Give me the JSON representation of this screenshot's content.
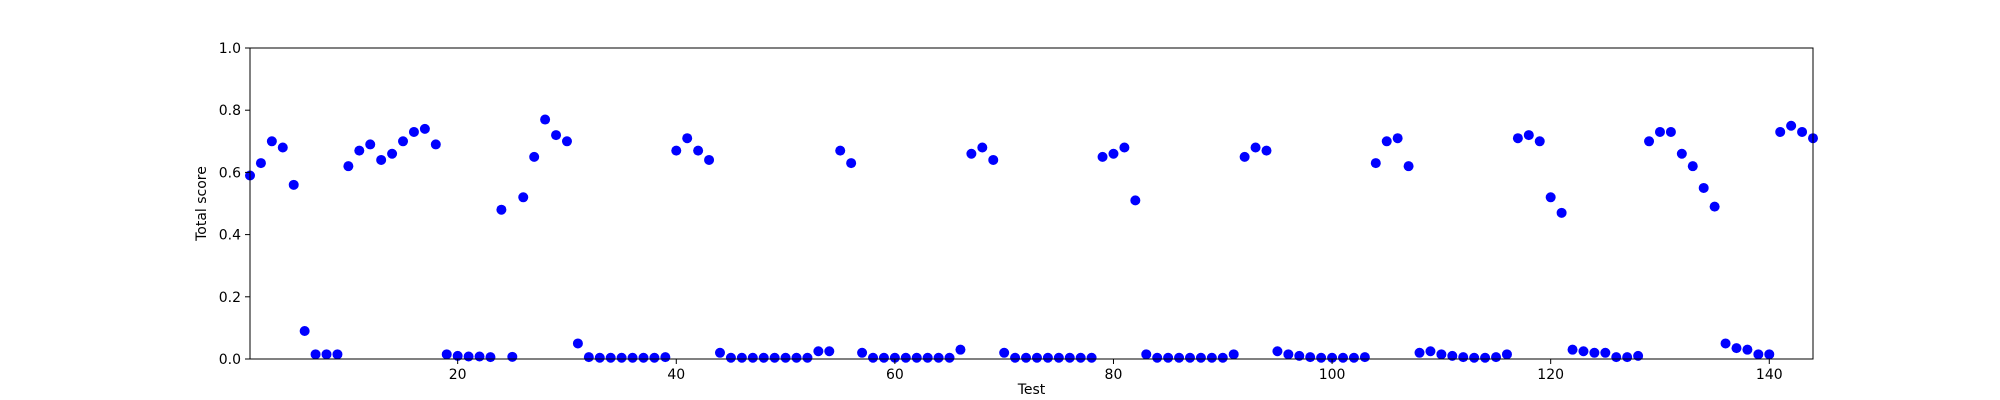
{
  "chart_data": {
    "type": "scatter",
    "xlabel": "Test",
    "ylabel": "Total score",
    "xlim": [
      1,
      144
    ],
    "ylim": [
      0.0,
      1.0
    ],
    "grid": false,
    "marker_color": "#0000ff",
    "x_ticks": [
      20,
      40,
      60,
      80,
      100,
      120,
      140
    ],
    "y_ticks": [
      0.0,
      0.2,
      0.4,
      0.6,
      0.8,
      1.0
    ],
    "x_tick_labels": [
      "20",
      "40",
      "60",
      "80",
      "100",
      "120",
      "140"
    ],
    "y_tick_labels": [
      "0.0",
      "0.2",
      "0.4",
      "0.6",
      "0.8",
      "1.0"
    ],
    "series": [
      {
        "x": [
          1,
          2,
          3,
          4,
          5,
          6,
          7,
          8,
          9,
          10,
          11,
          12,
          13,
          14,
          15,
          16,
          17,
          18,
          19,
          20,
          21,
          22,
          23,
          24,
          25,
          26,
          27,
          28,
          29,
          30,
          31,
          32,
          33,
          34,
          35,
          36,
          37,
          38,
          39,
          40,
          41,
          42,
          43,
          44,
          45,
          46,
          47,
          48,
          49,
          50,
          51,
          52,
          53,
          54,
          55,
          56,
          57,
          58,
          59,
          60,
          61,
          62,
          63,
          64,
          65,
          66,
          67,
          68,
          69,
          70,
          71,
          72,
          73,
          74,
          75,
          76,
          77,
          78,
          79,
          80,
          81,
          82,
          83,
          84,
          85,
          86,
          87,
          88,
          89,
          90,
          91,
          92,
          93,
          94,
          95,
          96,
          97,
          98,
          99,
          100,
          101,
          102,
          103,
          104,
          105,
          106,
          107,
          108,
          109,
          110,
          111,
          112,
          113,
          114,
          115,
          116,
          117,
          118,
          119,
          120,
          121,
          122,
          123,
          124,
          125,
          126,
          127,
          128,
          129,
          130,
          131,
          132,
          133,
          134,
          135,
          136,
          137,
          138,
          139,
          140,
          141,
          142,
          143,
          144
        ],
        "y": [
          0.59,
          0.63,
          0.7,
          0.68,
          0.56,
          0.09,
          0.015,
          0.015,
          0.015,
          0.62,
          0.67,
          0.69,
          0.64,
          0.66,
          0.7,
          0.73,
          0.74,
          0.69,
          0.015,
          0.01,
          0.008,
          0.008,
          0.006,
          0.48,
          0.007,
          0.52,
          0.65,
          0.77,
          0.72,
          0.7,
          0.05,
          0.006,
          0.004,
          0.004,
          0.004,
          0.004,
          0.004,
          0.004,
          0.006,
          0.67,
          0.71,
          0.67,
          0.64,
          0.02,
          0.004,
          0.004,
          0.004,
          0.004,
          0.004,
          0.004,
          0.004,
          0.004,
          0.025,
          0.025,
          0.67,
          0.63,
          0.02,
          0.004,
          0.004,
          0.004,
          0.004,
          0.004,
          0.004,
          0.004,
          0.004,
          0.03,
          0.66,
          0.68,
          0.64,
          0.02,
          0.004,
          0.004,
          0.004,
          0.004,
          0.004,
          0.004,
          0.004,
          0.004,
          0.65,
          0.66,
          0.68,
          0.51,
          0.015,
          0.004,
          0.004,
          0.004,
          0.004,
          0.004,
          0.004,
          0.004,
          0.015,
          0.65,
          0.68,
          0.67,
          0.025,
          0.015,
          0.01,
          0.006,
          0.004,
          0.004,
          0.004,
          0.004,
          0.006,
          0.63,
          0.7,
          0.71,
          0.62,
          0.02,
          0.025,
          0.015,
          0.01,
          0.006,
          0.004,
          0.004,
          0.006,
          0.015,
          0.71,
          0.72,
          0.7,
          0.52,
          0.47,
          0.03,
          0.025,
          0.02,
          0.02,
          0.006,
          0.006,
          0.01,
          0.7,
          0.73,
          0.73,
          0.66,
          0.62,
          0.55,
          0.49,
          0.05,
          0.035,
          0.03,
          0.015,
          0.015,
          0.73,
          0.75,
          0.73,
          0.71
        ]
      }
    ]
  }
}
